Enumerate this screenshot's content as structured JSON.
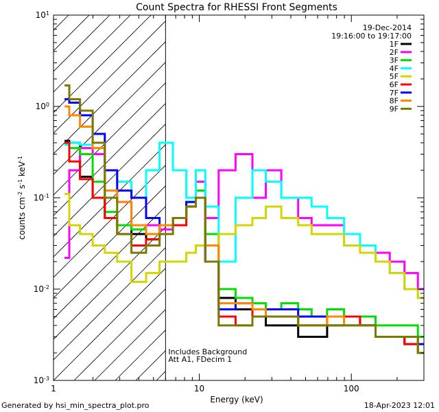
{
  "chart_data": {
    "type": "line",
    "title": "Count Spectra for RHESSI Front Segments",
    "xlabel": "Energy (keV)",
    "ylabel": "counts cm^-2 s^-1 keV^-1",
    "xscale": "log",
    "yscale": "log",
    "xlim": [
      1.1,
      300
    ],
    "ylim": [
      0.001,
      10
    ],
    "x_ticks": [
      {
        "value": 1,
        "label": "1"
      },
      {
        "value": 10,
        "label": "10"
      },
      {
        "value": 100,
        "label": "100"
      }
    ],
    "y_ticks": [
      {
        "value": 10,
        "base": "10",
        "exp": "1"
      },
      {
        "value": 1,
        "base": "10",
        "exp": "0"
      },
      {
        "value": 0.1,
        "base": "10",
        "exp": "-1"
      },
      {
        "value": 0.01,
        "base": "10",
        "exp": "-2"
      },
      {
        "value": 0.001,
        "base": "10",
        "exp": "-3"
      }
    ],
    "date": "19-Dec-2014",
    "time_range": "19:16:00 to 19:17:00",
    "hatched_below_kev": 6,
    "annotations": [
      "Includes Background",
      "Att A1, FDecim 1"
    ],
    "series": [
      {
        "name": "1F",
        "color": "#000000",
        "x": [
          1.3,
          1.5,
          1.8,
          2.2,
          2.6,
          3.2,
          4,
          5,
          6,
          7.5,
          9,
          10,
          12,
          15,
          20,
          25,
          30,
          40,
          50,
          60,
          80,
          100,
          130,
          160,
          200,
          250,
          300
        ],
        "y": [
          0.42,
          0.4,
          0.17,
          0.1,
          0.06,
          0.05,
          0.04,
          0.035,
          0.05,
          0.06,
          0.08,
          0.1,
          0.03,
          0.008,
          0.006,
          0.005,
          0.004,
          0.004,
          0.003,
          0.003,
          0.004,
          0.005,
          0.004,
          0.003,
          0.003,
          0.0025,
          0.002
        ]
      },
      {
        "name": "2F",
        "color": "#ff00ff",
        "x": [
          1.3,
          1.5,
          1.8,
          2.2,
          2.6,
          3.2,
          4,
          5,
          6,
          7.5,
          9,
          10,
          12,
          15,
          20,
          25,
          30,
          40,
          50,
          60,
          80,
          100,
          130,
          160,
          200,
          250,
          300
        ],
        "y": [
          0.022,
          0.2,
          0.35,
          0.3,
          0.1,
          0.09,
          0.05,
          0.05,
          0.045,
          0.06,
          0.09,
          0.15,
          0.06,
          0.2,
          0.3,
          0.1,
          0.2,
          0.1,
          0.06,
          0.05,
          0.05,
          0.03,
          0.03,
          0.025,
          0.02,
          0.015,
          0.01
        ]
      },
      {
        "name": "3F",
        "color": "#00e000",
        "x": [
          1.3,
          1.5,
          1.8,
          2.2,
          2.6,
          3.2,
          4,
          5,
          6,
          7.5,
          9,
          10,
          12,
          15,
          20,
          25,
          30,
          40,
          50,
          60,
          80,
          100,
          130,
          160,
          200,
          250,
          300
        ],
        "y": [
          0.4,
          0.35,
          0.3,
          0.15,
          0.07,
          0.05,
          0.045,
          0.04,
          0.05,
          0.06,
          0.09,
          0.12,
          0.04,
          0.01,
          0.008,
          0.007,
          0.006,
          0.007,
          0.006,
          0.005,
          0.006,
          0.005,
          0.005,
          0.004,
          0.004,
          0.004,
          0.003
        ]
      },
      {
        "name": "4F",
        "color": "#00ffff",
        "x": [
          1.3,
          1.5,
          1.8,
          2.2,
          2.6,
          3.2,
          4,
          5,
          6,
          7.5,
          9,
          10,
          12,
          15,
          20,
          25,
          30,
          40,
          50,
          60,
          80,
          100,
          130,
          160,
          200,
          250,
          300
        ],
        "y": [
          0.38,
          0.4,
          0.38,
          0.35,
          0.2,
          0.15,
          0.1,
          0.2,
          0.4,
          0.2,
          0.1,
          0.2,
          0.08,
          0.02,
          0.1,
          0.2,
          0.15,
          0.1,
          0.1,
          0.08,
          0.06,
          0.04,
          0.03,
          0.02,
          0.015,
          0.01,
          0.008
        ]
      },
      {
        "name": "5F",
        "color": "#d4d400",
        "x": [
          1.3,
          1.5,
          1.8,
          2.2,
          2.6,
          3.2,
          4,
          5,
          6,
          7.5,
          9,
          10,
          12,
          15,
          20,
          25,
          30,
          40,
          50,
          60,
          80,
          100,
          130,
          160,
          200,
          250,
          300
        ],
        "y": [
          0.11,
          0.05,
          0.04,
          0.03,
          0.025,
          0.02,
          0.012,
          0.015,
          0.02,
          0.02,
          0.025,
          0.03,
          0.03,
          0.04,
          0.05,
          0.06,
          0.08,
          0.06,
          0.05,
          0.04,
          0.04,
          0.03,
          0.025,
          0.02,
          0.015,
          0.01,
          0.008
        ]
      },
      {
        "name": "6F",
        "color": "#ff0000",
        "x": [
          1.3,
          1.5,
          1.8,
          2.2,
          2.6,
          3.2,
          4,
          5,
          6,
          7.5,
          9,
          10,
          12,
          15,
          20,
          25,
          30,
          40,
          50,
          60,
          80,
          100,
          130,
          160,
          200,
          250,
          300
        ],
        "y": [
          0.4,
          0.25,
          0.16,
          0.1,
          0.06,
          0.04,
          0.03,
          0.035,
          0.05,
          0.05,
          0.08,
          0.1,
          0.02,
          0.005,
          0.004,
          0.006,
          0.005,
          0.005,
          0.004,
          0.004,
          0.005,
          0.005,
          0.004,
          0.003,
          0.003,
          0.0025,
          0.002
        ]
      },
      {
        "name": "7F",
        "color": "#0000ff",
        "x": [
          1.3,
          1.5,
          1.8,
          2.2,
          2.6,
          3.2,
          4,
          5,
          6,
          7.5,
          9,
          10,
          12,
          15,
          20,
          25,
          30,
          40,
          50,
          60,
          80,
          100,
          130,
          160,
          200,
          250,
          300
        ],
        "y": [
          1.2,
          1.1,
          0.8,
          0.5,
          0.2,
          0.12,
          0.1,
          0.06,
          0.05,
          0.06,
          0.09,
          0.1,
          0.02,
          0.006,
          0.007,
          0.006,
          0.006,
          0.006,
          0.005,
          0.005,
          0.005,
          0.004,
          0.004,
          0.003,
          0.003,
          0.003,
          0.0025
        ]
      },
      {
        "name": "8F",
        "color": "#ff8800",
        "x": [
          1.3,
          1.5,
          1.8,
          2.2,
          2.6,
          3.2,
          4,
          5,
          6,
          7.5,
          9,
          10,
          12,
          15,
          20,
          25,
          30,
          40,
          50,
          60,
          80,
          100,
          130,
          160,
          200,
          250,
          300
        ],
        "y": [
          1.0,
          0.8,
          0.6,
          0.35,
          0.12,
          0.09,
          0.05,
          0.04,
          0.05,
          0.06,
          0.08,
          0.1,
          0.03,
          0.007,
          0.007,
          0.006,
          0.005,
          0.005,
          0.004,
          0.004,
          0.005,
          0.004,
          0.004,
          0.003,
          0.003,
          0.003,
          0.002
        ]
      },
      {
        "name": "9F",
        "color": "#7a7a00",
        "x": [
          1.3,
          1.5,
          1.8,
          2.2,
          2.6,
          3.2,
          4,
          5,
          6,
          7.5,
          9,
          10,
          12,
          15,
          20,
          25,
          30,
          40,
          50,
          60,
          80,
          100,
          130,
          160,
          200,
          250,
          300
        ],
        "y": [
          1.7,
          1.2,
          0.9,
          0.4,
          0.1,
          0.04,
          0.025,
          0.03,
          0.04,
          0.06,
          0.08,
          0.1,
          0.02,
          0.004,
          0.004,
          0.005,
          0.005,
          0.005,
          0.004,
          0.004,
          0.004,
          0.004,
          0.004,
          0.003,
          0.003,
          0.003,
          0.002
        ]
      }
    ]
  },
  "footer": {
    "generated_by": "Generated by hsi_min_spectra_plot.pro",
    "timestamp": "18-Apr-2023 12:01"
  }
}
